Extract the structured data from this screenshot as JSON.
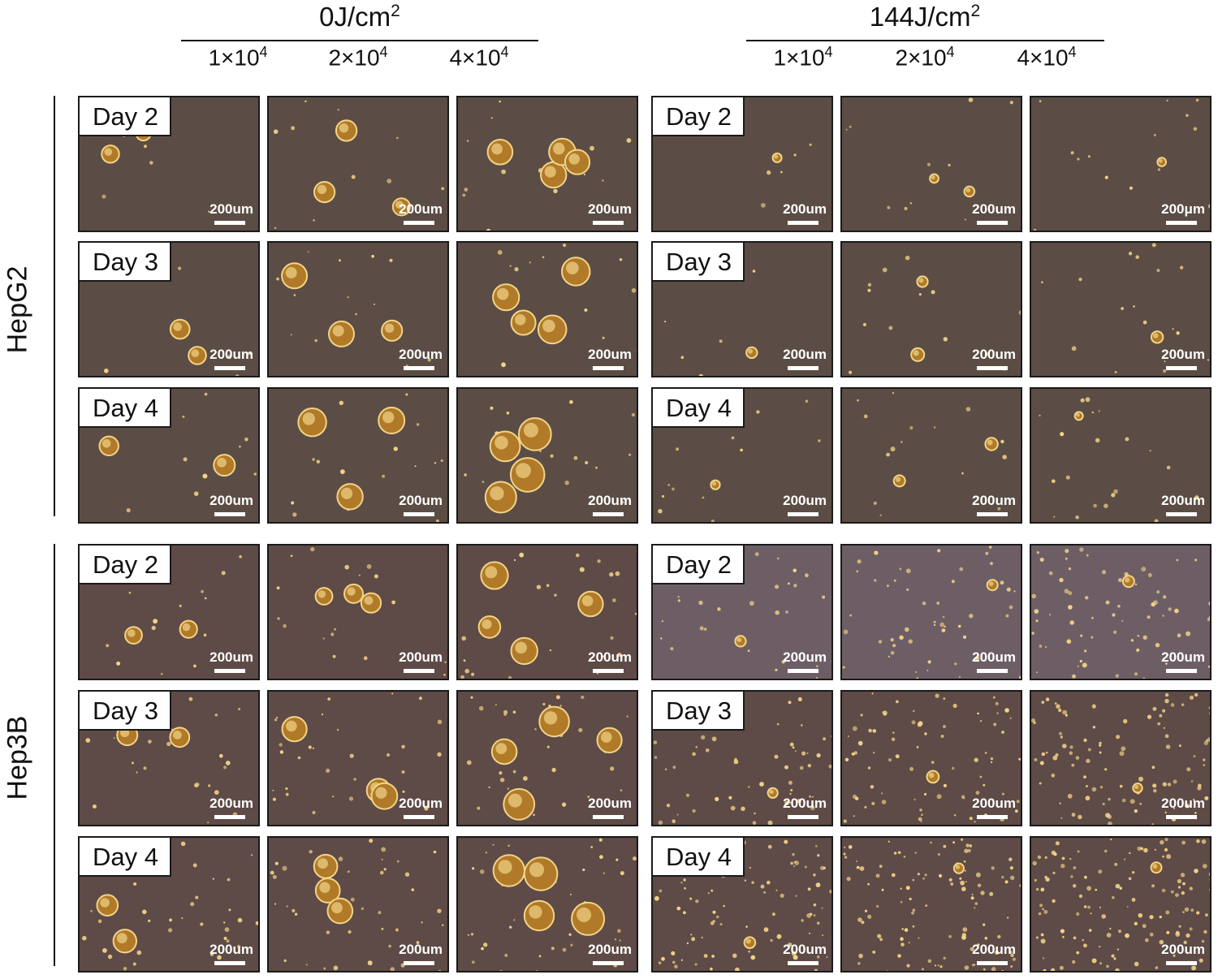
{
  "figure": {
    "groups": [
      {
        "label": "0J/cm",
        "superscript": "2"
      },
      {
        "label": "144J/cm",
        "superscript": "2"
      }
    ],
    "densities": [
      {
        "base": "1×10",
        "exp": "4"
      },
      {
        "base": "2×10",
        "exp": "4"
      },
      {
        "base": "4×10",
        "exp": "4"
      }
    ],
    "cell_lines": [
      "HepG2",
      "Hep3B"
    ],
    "days": [
      "Day 2",
      "Day 3",
      "Day 4"
    ],
    "scale_bar_label": "200um",
    "scale_bar_label_alt": "200μm",
    "colors": {
      "hepg2_background": "#5b4d45",
      "hep3b_background": "#5e4a46",
      "hep3b_irradiated_background": "#6d5e66",
      "cell_highlight": "#f2d488",
      "cell_core": "#b07a28"
    }
  }
}
